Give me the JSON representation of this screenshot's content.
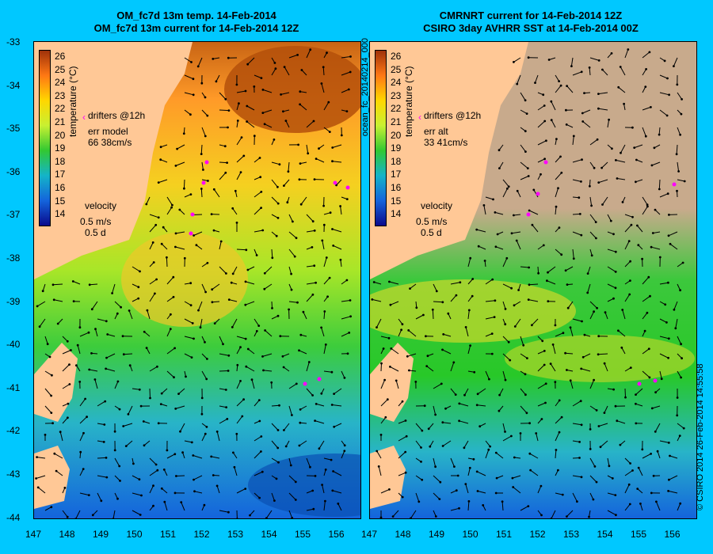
{
  "left_panel": {
    "title_line1": "OM_fc7d 13m temp. 14-Feb-2014",
    "title_line2": "OM_fc7d 13m current for 14-Feb-2014 12Z",
    "legend": {
      "drifters": "drifters @12h",
      "err_label": "err model",
      "err_value": "66 38cm/s",
      "velocity_label": "velocity",
      "velocity_speed": "0.5 m/s",
      "velocity_time": "0.5 d"
    }
  },
  "right_panel": {
    "title_line1": "CMRNRT current for 14-Feb-2014 12Z",
    "title_line2": "CSIRO 3day AVHRR SST at 14-Feb-2014 00Z",
    "legend": {
      "drifters": "drifters @12h",
      "err_label": "err alt",
      "err_value": "33 41cm/s",
      "velocity_label": "velocity",
      "velocity_speed": "0.5 m/s",
      "velocity_time": "0.5 d"
    }
  },
  "colorbar": {
    "unit": "temperature (°C)",
    "ticks": [
      "26",
      "25",
      "24",
      "23",
      "22",
      "21",
      "20",
      "19",
      "18",
      "17",
      "16",
      "15",
      "14"
    ]
  },
  "axes": {
    "lat_ticks": [
      "-33",
      "-34",
      "-35",
      "-36",
      "-37",
      "-38",
      "-39",
      "-40",
      "-41",
      "-42",
      "-43",
      "-44"
    ],
    "lon_ticks": [
      "147",
      "148",
      "149",
      "150",
      "151",
      "152",
      "153",
      "154",
      "155",
      "156"
    ]
  },
  "side_label": "ocean_fc_20140214_000",
  "credit": "© CSIRO 2014   26-Feb-2014 14:55:58",
  "colors": {
    "background": "#00c8ff",
    "land": "#ffc896",
    "cloud": "#c8aa8c",
    "drifter": "#ff00ff",
    "arrow": "#000000"
  }
}
